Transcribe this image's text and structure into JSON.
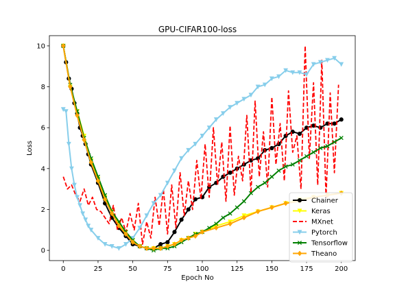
{
  "chart_data": {
    "type": "line",
    "title": "GPU-CIFAR100-loss",
    "xlabel": "Epoch No",
    "ylabel": "Loss",
    "xlim": [
      -10,
      210
    ],
    "ylim": [
      -0.5,
      10.5
    ],
    "xticks": [
      0,
      25,
      50,
      75,
      100,
      125,
      150,
      175,
      200
    ],
    "yticks": [
      0,
      2,
      4,
      6,
      8,
      10
    ],
    "grid": false,
    "legend_position": "lower right",
    "series": [
      {
        "name": "Chainer",
        "color": "#000000",
        "marker": "circle",
        "linestyle": "solid",
        "x": [
          0,
          2,
          4,
          6,
          8,
          10,
          12,
          14,
          16,
          18,
          20,
          25,
          30,
          35,
          40,
          45,
          50,
          55,
          60,
          65,
          70,
          75,
          80,
          85,
          90,
          95,
          100,
          105,
          110,
          115,
          120,
          125,
          130,
          135,
          140,
          145,
          150,
          155,
          160,
          165,
          170,
          175,
          180,
          185,
          190,
          195,
          200
        ],
        "y": [
          10.0,
          9.2,
          8.4,
          7.9,
          7.2,
          6.7,
          6.0,
          5.6,
          5.2,
          4.7,
          4.2,
          3.3,
          2.3,
          1.6,
          1.1,
          0.7,
          0.3,
          0.2,
          0.1,
          0.1,
          0.3,
          0.4,
          0.9,
          1.5,
          2.0,
          2.5,
          2.6,
          3.1,
          3.3,
          3.6,
          3.8,
          4.0,
          4.2,
          4.4,
          4.5,
          4.9,
          5.0,
          5.2,
          5.6,
          5.8,
          5.7,
          6.0,
          6.1,
          6.0,
          6.2,
          6.2,
          6.4
        ]
      },
      {
        "name": "Keras",
        "color": "#ffff00",
        "marker": "triangle-down",
        "linestyle": "solid",
        "x": [
          0,
          5,
          10,
          15,
          20,
          25,
          30,
          35,
          40,
          45,
          50,
          55,
          60,
          65,
          70,
          75,
          80,
          85,
          90,
          95,
          100,
          110,
          120,
          130,
          140,
          150,
          160,
          170,
          180,
          190,
          200
        ],
        "y": [
          10.0,
          8.0,
          6.8,
          5.6,
          4.4,
          3.5,
          2.6,
          1.9,
          1.3,
          0.9,
          0.5,
          0.2,
          0.1,
          0.1,
          0.1,
          0.2,
          0.3,
          0.5,
          0.6,
          0.8,
          0.9,
          1.2,
          1.4,
          1.7,
          1.9,
          2.1,
          2.3,
          2.5,
          2.6,
          2.7,
          2.8
        ]
      },
      {
        "name": "MXnet",
        "color": "#ff0000",
        "marker": "none",
        "linestyle": "dashed",
        "x": [
          0,
          3,
          6,
          9,
          12,
          15,
          18,
          21,
          24,
          27,
          30,
          33,
          36,
          39,
          42,
          45,
          48,
          51,
          54,
          57,
          60,
          63,
          66,
          69,
          72,
          75,
          78,
          81,
          84,
          87,
          90,
          93,
          96,
          99,
          102,
          105,
          108,
          111,
          114,
          117,
          120,
          123,
          126,
          129,
          132,
          135,
          138,
          141,
          144,
          147,
          150,
          153,
          156,
          159,
          162,
          165,
          168,
          171,
          174,
          177,
          180,
          183,
          186,
          189,
          192,
          195,
          198
        ],
        "y": [
          3.6,
          3.0,
          3.2,
          2.7,
          2.4,
          3.0,
          2.2,
          2.6,
          2.0,
          1.9,
          1.6,
          1.3,
          2.2,
          1.0,
          1.6,
          0.9,
          1.8,
          1.0,
          2.3,
          0.3,
          1.4,
          0.6,
          2.6,
          1.2,
          3.0,
          0.8,
          3.2,
          1.1,
          3.8,
          1.7,
          3.4,
          2.0,
          4.4,
          2.5,
          5.2,
          2.6,
          6.0,
          3.2,
          5.3,
          2.4,
          6.1,
          2.7,
          4.6,
          3.4,
          6.6,
          2.8,
          7.3,
          3.6,
          5.8,
          3.1,
          7.5,
          4.2,
          6.2,
          3.4,
          7.8,
          4.8,
          5.6,
          3.0,
          10.0,
          4.5,
          8.2,
          3.2,
          9.3,
          2.6,
          7.7,
          3.8,
          8.1
        ]
      },
      {
        "name": "Pytorch",
        "color": "#87ceeb",
        "marker": "triangle-down",
        "linestyle": "solid",
        "x": [
          0,
          2,
          4,
          6,
          8,
          10,
          12,
          14,
          16,
          18,
          20,
          25,
          30,
          35,
          40,
          45,
          50,
          55,
          60,
          65,
          70,
          75,
          80,
          85,
          90,
          95,
          100,
          105,
          110,
          115,
          120,
          125,
          130,
          135,
          140,
          145,
          150,
          155,
          160,
          165,
          170,
          175,
          180,
          185,
          190,
          195,
          200
        ],
        "y": [
          6.9,
          6.8,
          5.2,
          4.0,
          3.2,
          2.6,
          2.2,
          1.8,
          1.5,
          1.2,
          1.0,
          0.6,
          0.3,
          0.2,
          0.1,
          0.3,
          0.6,
          1.1,
          1.7,
          2.3,
          2.7,
          3.3,
          3.9,
          4.5,
          4.9,
          5.2,
          5.6,
          6.0,
          6.4,
          6.7,
          7.0,
          7.2,
          7.4,
          7.6,
          8.0,
          8.1,
          8.4,
          8.5,
          8.8,
          8.7,
          8.7,
          8.6,
          9.1,
          9.2,
          9.3,
          9.4,
          9.1
        ]
      },
      {
        "name": "Tensorflow",
        "color": "#008000",
        "marker": "x",
        "linestyle": "solid",
        "x": [
          0,
          5,
          10,
          15,
          20,
          25,
          30,
          35,
          40,
          45,
          50,
          55,
          60,
          65,
          70,
          75,
          80,
          85,
          90,
          95,
          100,
          105,
          110,
          115,
          120,
          125,
          130,
          135,
          140,
          145,
          150,
          155,
          160,
          165,
          170,
          175,
          180,
          185,
          190,
          195,
          200
        ],
        "y": [
          10.0,
          8.1,
          6.8,
          5.5,
          4.5,
          3.6,
          2.7,
          1.9,
          1.4,
          0.9,
          0.5,
          0.2,
          0.1,
          0.0,
          0.1,
          0.1,
          0.2,
          0.4,
          0.6,
          0.8,
          0.9,
          1.1,
          1.3,
          1.6,
          1.8,
          2.1,
          2.4,
          2.8,
          3.1,
          3.3,
          3.6,
          3.9,
          4.1,
          4.2,
          4.4,
          4.6,
          4.8,
          5.0,
          5.1,
          5.3,
          5.5
        ]
      },
      {
        "name": "Theano",
        "color": "#ffa500",
        "marker": "diamond",
        "linestyle": "solid",
        "x": [
          0,
          5,
          10,
          15,
          20,
          25,
          30,
          35,
          40,
          45,
          50,
          55,
          60,
          65,
          70,
          75,
          80,
          85,
          90,
          95,
          100,
          110,
          120,
          130,
          140,
          150,
          160,
          170,
          180,
          190,
          200
        ],
        "y": [
          10.0,
          8.0,
          6.6,
          5.4,
          4.3,
          3.4,
          2.5,
          1.8,
          1.2,
          0.8,
          0.4,
          0.2,
          0.1,
          0.1,
          0.1,
          0.2,
          0.3,
          0.5,
          0.6,
          0.7,
          0.9,
          1.1,
          1.3,
          1.6,
          1.9,
          2.1,
          2.3,
          2.4,
          2.6,
          2.7,
          2.8
        ]
      }
    ]
  }
}
